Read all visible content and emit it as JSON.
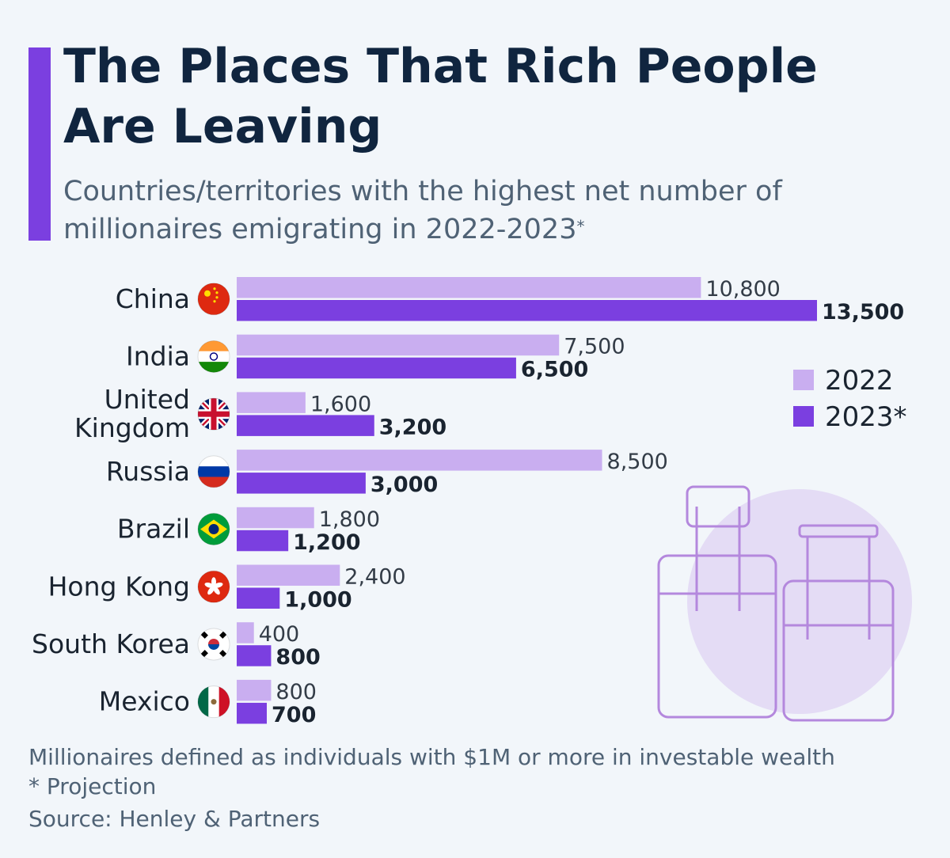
{
  "title": "The Places That Rich People Are Leaving",
  "subtitle": "Countries/territories with the highest net number of millionaires emigrating in 2022-2023",
  "subtitle_mark": "*",
  "colors": {
    "accent": "#7b3fe0",
    "series_2022": "#c9aef0",
    "series_2023": "#7b3fe0",
    "title": "#10253f",
    "text": "#4f6275",
    "label": "#1a2430"
  },
  "chart_data": {
    "type": "bar",
    "orientation": "horizontal",
    "categories": [
      "China",
      "India",
      "United Kingdom",
      "Russia",
      "Brazil",
      "Hong Kong",
      "South Korea",
      "Mexico"
    ],
    "category_lines": [
      [
        "China"
      ],
      [
        "India"
      ],
      [
        "United",
        "Kingdom"
      ],
      [
        "Russia"
      ],
      [
        "Brazil"
      ],
      [
        "Hong Kong"
      ],
      [
        "South Korea"
      ],
      [
        "Mexico"
      ]
    ],
    "flag_icons": [
      "china-flag-icon",
      "india-flag-icon",
      "uk-flag-icon",
      "russia-flag-icon",
      "brazil-flag-icon",
      "hong-kong-flag-icon",
      "south-korea-flag-icon",
      "mexico-flag-icon"
    ],
    "series": [
      {
        "name": "2022",
        "values": [
          10800,
          7500,
          1600,
          8500,
          1800,
          2400,
          400,
          800
        ],
        "labels": [
          "10,800",
          "7,500",
          "1,600",
          "8,500",
          "1,800",
          "2,400",
          "400",
          "800"
        ]
      },
      {
        "name": "2023*",
        "values": [
          13500,
          6500,
          3200,
          3000,
          1200,
          1000,
          800,
          700
        ],
        "labels": [
          "13,500",
          "6,500",
          "3,200",
          "3,000",
          "1,200",
          "1,000",
          "800",
          "700"
        ]
      }
    ],
    "legend": [
      "2022",
      "2023*"
    ],
    "legend_position": "right",
    "xlim": [
      0,
      13500
    ],
    "grid": false
  },
  "illustration": "luggage-globe-icon",
  "footnotes": {
    "definition": "Millionaires defined as individuals with $1M or more in investable wealth",
    "projection": "* Projection",
    "source": "Source: Henley & Partners"
  }
}
